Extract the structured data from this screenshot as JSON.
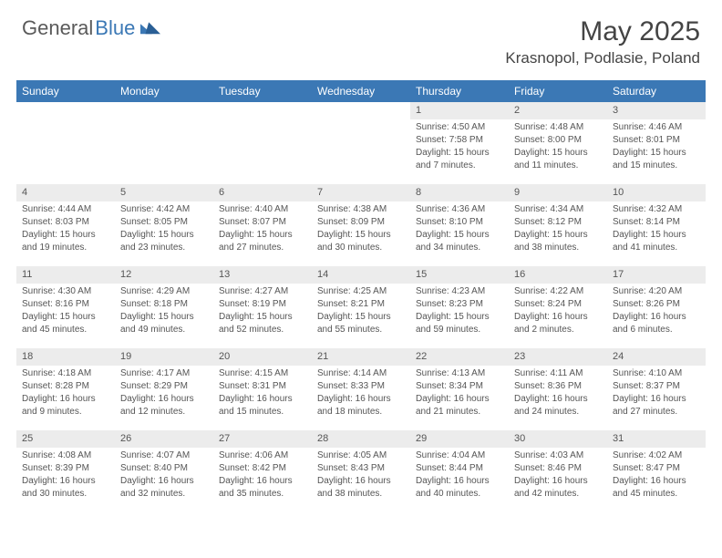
{
  "logo": {
    "part1": "General",
    "part2": "Blue"
  },
  "title": "May 2025",
  "location": "Krasnopol, Podlasie, Poland",
  "colors": {
    "header_bg": "#3b78b5",
    "header_fg": "#ffffff",
    "date_bg": "#ececec",
    "text": "#555555",
    "page_bg": "#ffffff"
  },
  "day_headers": [
    "Sunday",
    "Monday",
    "Tuesday",
    "Wednesday",
    "Thursday",
    "Friday",
    "Saturday"
  ],
  "weeks": [
    [
      {
        "date": "",
        "sunrise": "",
        "sunset": "",
        "daylight1": "",
        "daylight2": ""
      },
      {
        "date": "",
        "sunrise": "",
        "sunset": "",
        "daylight1": "",
        "daylight2": ""
      },
      {
        "date": "",
        "sunrise": "",
        "sunset": "",
        "daylight1": "",
        "daylight2": ""
      },
      {
        "date": "",
        "sunrise": "",
        "sunset": "",
        "daylight1": "",
        "daylight2": ""
      },
      {
        "date": "1",
        "sunrise": "Sunrise: 4:50 AM",
        "sunset": "Sunset: 7:58 PM",
        "daylight1": "Daylight: 15 hours",
        "daylight2": "and 7 minutes."
      },
      {
        "date": "2",
        "sunrise": "Sunrise: 4:48 AM",
        "sunset": "Sunset: 8:00 PM",
        "daylight1": "Daylight: 15 hours",
        "daylight2": "and 11 minutes."
      },
      {
        "date": "3",
        "sunrise": "Sunrise: 4:46 AM",
        "sunset": "Sunset: 8:01 PM",
        "daylight1": "Daylight: 15 hours",
        "daylight2": "and 15 minutes."
      }
    ],
    [
      {
        "date": "4",
        "sunrise": "Sunrise: 4:44 AM",
        "sunset": "Sunset: 8:03 PM",
        "daylight1": "Daylight: 15 hours",
        "daylight2": "and 19 minutes."
      },
      {
        "date": "5",
        "sunrise": "Sunrise: 4:42 AM",
        "sunset": "Sunset: 8:05 PM",
        "daylight1": "Daylight: 15 hours",
        "daylight2": "and 23 minutes."
      },
      {
        "date": "6",
        "sunrise": "Sunrise: 4:40 AM",
        "sunset": "Sunset: 8:07 PM",
        "daylight1": "Daylight: 15 hours",
        "daylight2": "and 27 minutes."
      },
      {
        "date": "7",
        "sunrise": "Sunrise: 4:38 AM",
        "sunset": "Sunset: 8:09 PM",
        "daylight1": "Daylight: 15 hours",
        "daylight2": "and 30 minutes."
      },
      {
        "date": "8",
        "sunrise": "Sunrise: 4:36 AM",
        "sunset": "Sunset: 8:10 PM",
        "daylight1": "Daylight: 15 hours",
        "daylight2": "and 34 minutes."
      },
      {
        "date": "9",
        "sunrise": "Sunrise: 4:34 AM",
        "sunset": "Sunset: 8:12 PM",
        "daylight1": "Daylight: 15 hours",
        "daylight2": "and 38 minutes."
      },
      {
        "date": "10",
        "sunrise": "Sunrise: 4:32 AM",
        "sunset": "Sunset: 8:14 PM",
        "daylight1": "Daylight: 15 hours",
        "daylight2": "and 41 minutes."
      }
    ],
    [
      {
        "date": "11",
        "sunrise": "Sunrise: 4:30 AM",
        "sunset": "Sunset: 8:16 PM",
        "daylight1": "Daylight: 15 hours",
        "daylight2": "and 45 minutes."
      },
      {
        "date": "12",
        "sunrise": "Sunrise: 4:29 AM",
        "sunset": "Sunset: 8:18 PM",
        "daylight1": "Daylight: 15 hours",
        "daylight2": "and 49 minutes."
      },
      {
        "date": "13",
        "sunrise": "Sunrise: 4:27 AM",
        "sunset": "Sunset: 8:19 PM",
        "daylight1": "Daylight: 15 hours",
        "daylight2": "and 52 minutes."
      },
      {
        "date": "14",
        "sunrise": "Sunrise: 4:25 AM",
        "sunset": "Sunset: 8:21 PM",
        "daylight1": "Daylight: 15 hours",
        "daylight2": "and 55 minutes."
      },
      {
        "date": "15",
        "sunrise": "Sunrise: 4:23 AM",
        "sunset": "Sunset: 8:23 PM",
        "daylight1": "Daylight: 15 hours",
        "daylight2": "and 59 minutes."
      },
      {
        "date": "16",
        "sunrise": "Sunrise: 4:22 AM",
        "sunset": "Sunset: 8:24 PM",
        "daylight1": "Daylight: 16 hours",
        "daylight2": "and 2 minutes."
      },
      {
        "date": "17",
        "sunrise": "Sunrise: 4:20 AM",
        "sunset": "Sunset: 8:26 PM",
        "daylight1": "Daylight: 16 hours",
        "daylight2": "and 6 minutes."
      }
    ],
    [
      {
        "date": "18",
        "sunrise": "Sunrise: 4:18 AM",
        "sunset": "Sunset: 8:28 PM",
        "daylight1": "Daylight: 16 hours",
        "daylight2": "and 9 minutes."
      },
      {
        "date": "19",
        "sunrise": "Sunrise: 4:17 AM",
        "sunset": "Sunset: 8:29 PM",
        "daylight1": "Daylight: 16 hours",
        "daylight2": "and 12 minutes."
      },
      {
        "date": "20",
        "sunrise": "Sunrise: 4:15 AM",
        "sunset": "Sunset: 8:31 PM",
        "daylight1": "Daylight: 16 hours",
        "daylight2": "and 15 minutes."
      },
      {
        "date": "21",
        "sunrise": "Sunrise: 4:14 AM",
        "sunset": "Sunset: 8:33 PM",
        "daylight1": "Daylight: 16 hours",
        "daylight2": "and 18 minutes."
      },
      {
        "date": "22",
        "sunrise": "Sunrise: 4:13 AM",
        "sunset": "Sunset: 8:34 PM",
        "daylight1": "Daylight: 16 hours",
        "daylight2": "and 21 minutes."
      },
      {
        "date": "23",
        "sunrise": "Sunrise: 4:11 AM",
        "sunset": "Sunset: 8:36 PM",
        "daylight1": "Daylight: 16 hours",
        "daylight2": "and 24 minutes."
      },
      {
        "date": "24",
        "sunrise": "Sunrise: 4:10 AM",
        "sunset": "Sunset: 8:37 PM",
        "daylight1": "Daylight: 16 hours",
        "daylight2": "and 27 minutes."
      }
    ],
    [
      {
        "date": "25",
        "sunrise": "Sunrise: 4:08 AM",
        "sunset": "Sunset: 8:39 PM",
        "daylight1": "Daylight: 16 hours",
        "daylight2": "and 30 minutes."
      },
      {
        "date": "26",
        "sunrise": "Sunrise: 4:07 AM",
        "sunset": "Sunset: 8:40 PM",
        "daylight1": "Daylight: 16 hours",
        "daylight2": "and 32 minutes."
      },
      {
        "date": "27",
        "sunrise": "Sunrise: 4:06 AM",
        "sunset": "Sunset: 8:42 PM",
        "daylight1": "Daylight: 16 hours",
        "daylight2": "and 35 minutes."
      },
      {
        "date": "28",
        "sunrise": "Sunrise: 4:05 AM",
        "sunset": "Sunset: 8:43 PM",
        "daylight1": "Daylight: 16 hours",
        "daylight2": "and 38 minutes."
      },
      {
        "date": "29",
        "sunrise": "Sunrise: 4:04 AM",
        "sunset": "Sunset: 8:44 PM",
        "daylight1": "Daylight: 16 hours",
        "daylight2": "and 40 minutes."
      },
      {
        "date": "30",
        "sunrise": "Sunrise: 4:03 AM",
        "sunset": "Sunset: 8:46 PM",
        "daylight1": "Daylight: 16 hours",
        "daylight2": "and 42 minutes."
      },
      {
        "date": "31",
        "sunrise": "Sunrise: 4:02 AM",
        "sunset": "Sunset: 8:47 PM",
        "daylight1": "Daylight: 16 hours",
        "daylight2": "and 45 minutes."
      }
    ]
  ]
}
